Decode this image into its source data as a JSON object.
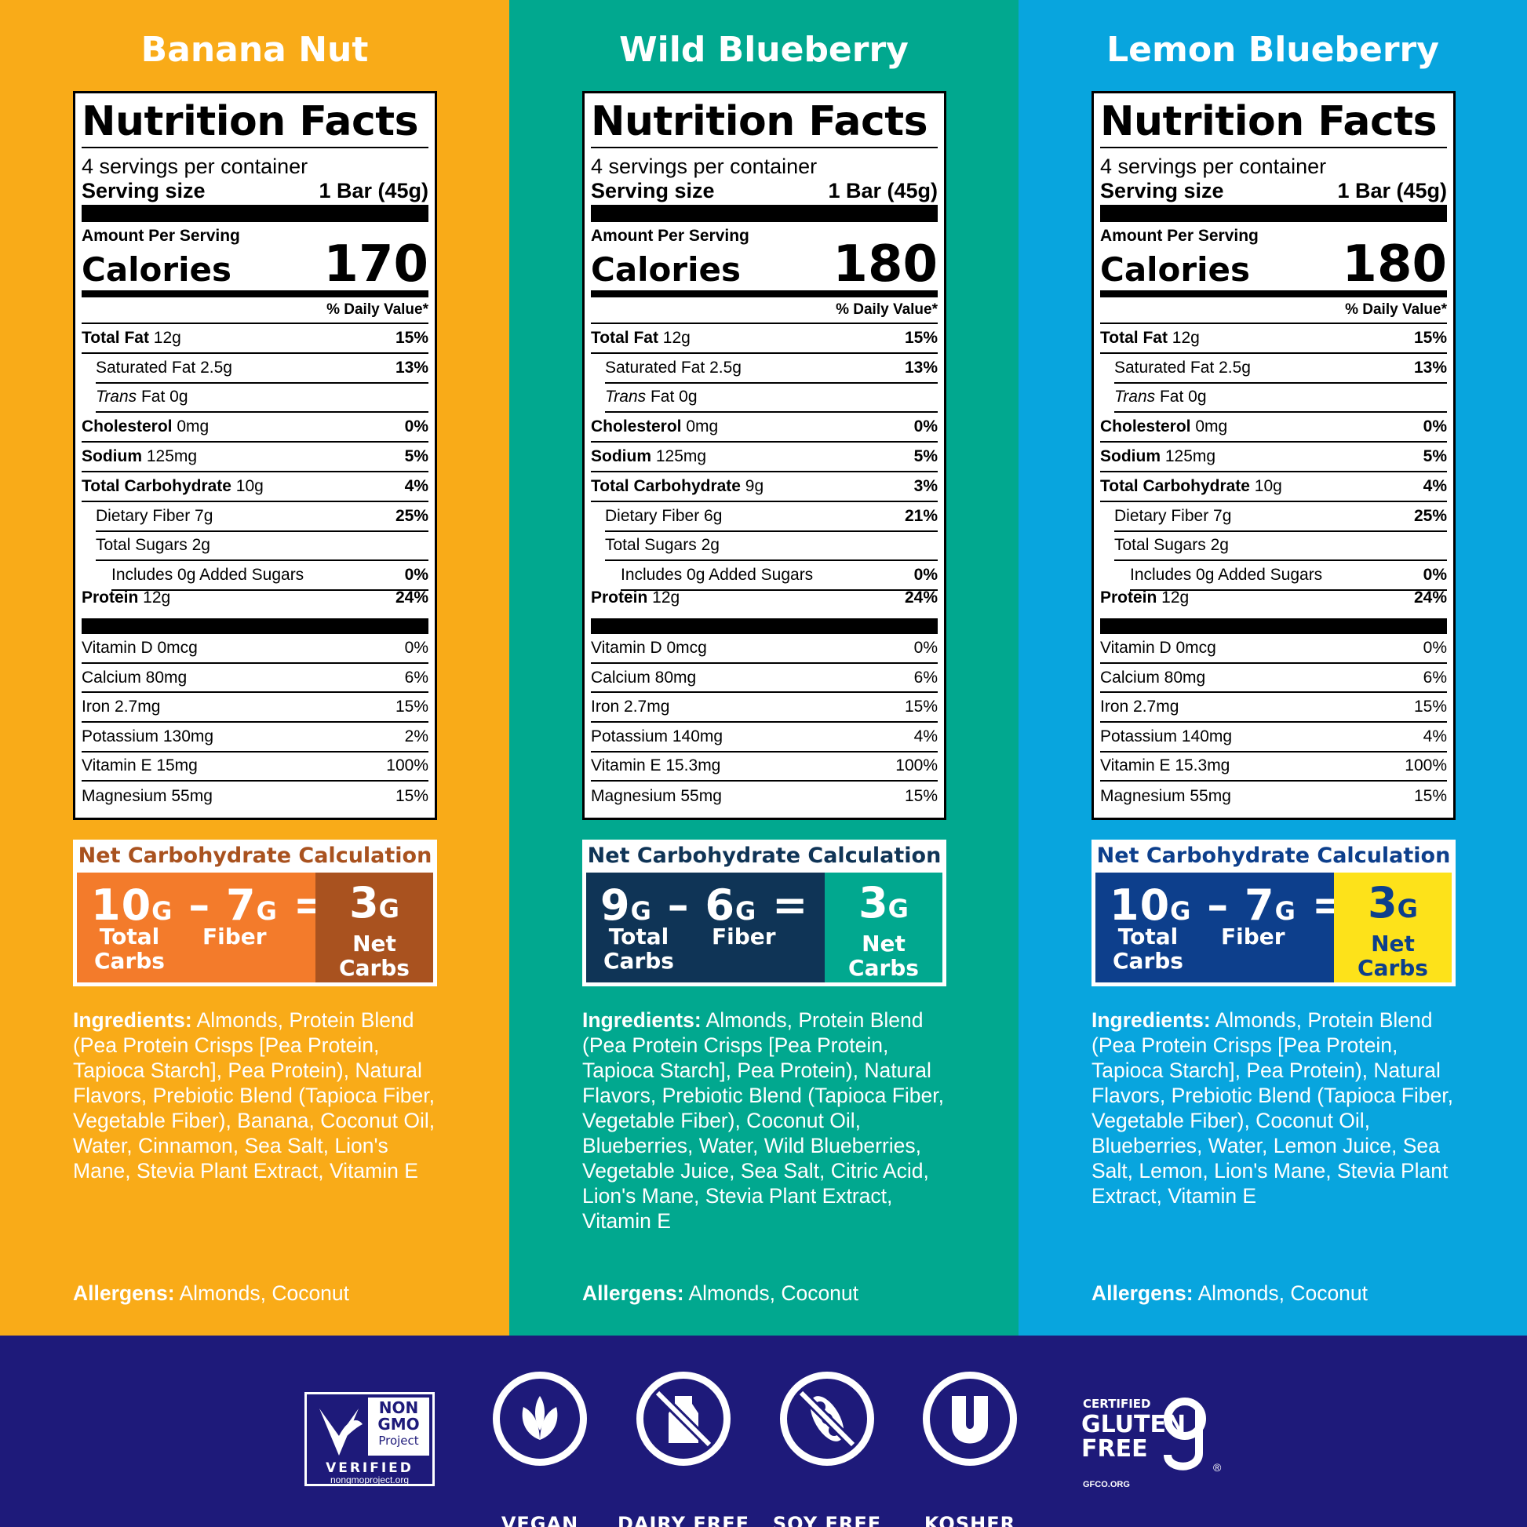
{
  "flavors": [
    {
      "name": "Banana Nut",
      "servings": "4 servings per container",
      "serving_size_label": "Serving size",
      "serving_size": "1 Bar (45g)",
      "amount_per": "Amount Per Serving",
      "calories_label": "Calories",
      "calories": "170",
      "dv_header": "% Daily Value*",
      "nutrients": [
        {
          "bold": "Total Fat",
          "amount": " 12g",
          "dv": "15%"
        },
        {
          "name": "Saturated Fat 2.5g",
          "dv": "13%"
        },
        {
          "italic": "Trans",
          "amount": " Fat 0g",
          "dv": ""
        },
        {
          "bold": "Cholesterol",
          "amount": " 0mg",
          "dv": "0%"
        },
        {
          "bold": "Sodium",
          "amount": " 125mg",
          "dv": "5%"
        },
        {
          "bold": "Total Carbohydrate",
          "amount": " 10g",
          "dv": "4%"
        },
        {
          "name": "Dietary Fiber 7g",
          "dv": "25%"
        },
        {
          "name": "Total Sugars 2g",
          "dv": ""
        },
        {
          "name": "Includes 0g Added Sugars",
          "dv": "0%"
        },
        {
          "bold": "Protein",
          "amount": " 12g",
          "dv": "24%"
        }
      ],
      "vitamins": [
        {
          "name": "Vitamin D 0mcg",
          "dv": "0%"
        },
        {
          "name": "Calcium 80mg",
          "dv": "6%"
        },
        {
          "name": "Iron 2.7mg",
          "dv": "15%"
        },
        {
          "name": "Potassium 130mg",
          "dv": "2%"
        },
        {
          "name": "Vitamin E 15mg",
          "dv": "100%"
        },
        {
          "name": "Magnesium 55mg",
          "dv": "15%"
        }
      ],
      "net_carb": {
        "title": "Net Carbohydrate Calculation",
        "total": "10",
        "fiber": "7",
        "net": "3",
        "unit": "G",
        "minus": "–",
        "equals": "=",
        "total_label_1": "Total",
        "total_label_2": "Carbs",
        "fiber_label": "Fiber",
        "net_label_1": "Net",
        "net_label_2": "Carbs"
      },
      "ingredients_label": "Ingredients:",
      "ingredients": " Almonds, Protein Blend (Pea Protein Crisps [Pea Protein, Tapioca Starch], Pea Protein), Natural Flavors, Prebiotic Blend (Tapioca Fiber, Vegetable Fiber), Banana, Coconut Oil, Water, Cinnamon, Sea Salt, Lion's Mane, Stevia Plant Extract, Vitamin E",
      "allergens_label": "Allergens:",
      "allergens": " Almonds, Coconut",
      "colors": {
        "title_color": "#a9521f",
        "left_bg": "#f37b2b",
        "right_bg": "#a9521f",
        "right_text": "#ffffff"
      }
    },
    {
      "name": "Wild Blueberry",
      "servings": "4 servings per container",
      "serving_size_label": "Serving size",
      "serving_size": "1 Bar (45g)",
      "amount_per": "Amount Per Serving",
      "calories_label": "Calories",
      "calories": "180",
      "dv_header": "% Daily Value*",
      "nutrients": [
        {
          "bold": "Total Fat",
          "amount": " 12g",
          "dv": "15%"
        },
        {
          "name": "Saturated Fat 2.5g",
          "dv": "13%"
        },
        {
          "italic": "Trans",
          "amount": " Fat 0g",
          "dv": ""
        },
        {
          "bold": "Cholesterol",
          "amount": " 0mg",
          "dv": "0%"
        },
        {
          "bold": "Sodium",
          "amount": " 125mg",
          "dv": "5%"
        },
        {
          "bold": "Total Carbohydrate",
          "amount": " 9g",
          "dv": "3%"
        },
        {
          "name": "Dietary Fiber 6g",
          "dv": "21%"
        },
        {
          "name": "Total Sugars 2g",
          "dv": ""
        },
        {
          "name": "Includes 0g Added Sugars",
          "dv": "0%"
        },
        {
          "bold": "Protein",
          "amount": " 12g",
          "dv": "24%"
        }
      ],
      "vitamins": [
        {
          "name": "Vitamin D 0mcg",
          "dv": "0%"
        },
        {
          "name": "Calcium 80mg",
          "dv": "6%"
        },
        {
          "name": "Iron 2.7mg",
          "dv": "15%"
        },
        {
          "name": "Potassium 140mg",
          "dv": "4%"
        },
        {
          "name": "Vitamin E 15.3mg",
          "dv": "100%"
        },
        {
          "name": "Magnesium 55mg",
          "dv": "15%"
        }
      ],
      "net_carb": {
        "title": "Net Carbohydrate Calculation",
        "total": "9",
        "fiber": "6",
        "net": "3",
        "unit": "G",
        "minus": "–",
        "equals": "=",
        "total_label_1": "Total",
        "total_label_2": "Carbs",
        "fiber_label": "Fiber",
        "net_label_1": "Net",
        "net_label_2": "Carbs"
      },
      "ingredients_label": "Ingredients:",
      "ingredients": " Almonds, Protein Blend (Pea Protein Crisps [Pea Protein, Tapioca Starch], Pea Protein), Natural Flavors, Prebiotic Blend (Tapioca Fiber, Vegetable Fiber), Coconut Oil, Blueberries, Water, Wild Blueberries, Vegetable Juice, Sea Salt, Citric Acid, Lion's Mane, Stevia Plant Extract, Vitamin E",
      "allergens_label": "Allergens:",
      "allergens": " Almonds, Coconut",
      "colors": {
        "title_color": "#0f3456",
        "left_bg": "#0f3456",
        "right_bg": "#01a88f",
        "right_text": "#ffffff"
      }
    },
    {
      "name": "Lemon Blueberry",
      "servings": "4 servings per container",
      "serving_size_label": "Serving size",
      "serving_size": "1 Bar (45g)",
      "amount_per": "Amount Per Serving",
      "calories_label": "Calories",
      "calories": "180",
      "dv_header": "% Daily Value*",
      "nutrients": [
        {
          "bold": "Total Fat",
          "amount": " 12g",
          "dv": "15%"
        },
        {
          "name": "Saturated Fat 2.5g",
          "dv": "13%"
        },
        {
          "italic": "Trans",
          "amount": " Fat 0g",
          "dv": ""
        },
        {
          "bold": "Cholesterol",
          "amount": " 0mg",
          "dv": "0%"
        },
        {
          "bold": "Sodium",
          "amount": " 125mg",
          "dv": "5%"
        },
        {
          "bold": "Total Carbohydrate",
          "amount": " 10g",
          "dv": "4%"
        },
        {
          "name": "Dietary Fiber 7g",
          "dv": "25%"
        },
        {
          "name": "Total Sugars 2g",
          "dv": ""
        },
        {
          "name": "Includes 0g Added Sugars",
          "dv": "0%"
        },
        {
          "bold": "Protein",
          "amount": " 12g",
          "dv": "24%"
        }
      ],
      "vitamins": [
        {
          "name": "Vitamin D 0mcg",
          "dv": "0%"
        },
        {
          "name": "Calcium 80mg",
          "dv": "6%"
        },
        {
          "name": "Iron 2.7mg",
          "dv": "15%"
        },
        {
          "name": "Potassium 140mg",
          "dv": "4%"
        },
        {
          "name": "Vitamin E 15.3mg",
          "dv": "100%"
        },
        {
          "name": "Magnesium 55mg",
          "dv": "15%"
        }
      ],
      "net_carb": {
        "title": "Net Carbohydrate Calculation",
        "total": "10",
        "fiber": "7",
        "net": "3",
        "unit": "G",
        "minus": "–",
        "equals": "=",
        "total_label_1": "Total",
        "total_label_2": "Carbs",
        "fiber_label": "Fiber",
        "net_label_1": "Net",
        "net_label_2": "Carbs"
      },
      "ingredients_label": "Ingredients:",
      "ingredients": " Almonds, Protein Blend (Pea Protein Crisps [Pea Protein, Tapioca Starch], Pea Protein), Natural Flavors, Prebiotic Blend (Tapioca Fiber, Vegetable Fiber), Coconut Oil, Blueberries, Water, Lemon Juice, Sea Salt, Lemon, Lion's Mane, Stevia Plant Extract, Vitamin E",
      "allergens_label": "Allergens:",
      "allergens": " Almonds, Coconut",
      "colors": {
        "title_color": "#0d3f8c",
        "left_bg": "#0d3f8c",
        "right_bg": "#fde21a",
        "right_text": "#0d3f8c"
      }
    }
  ],
  "footer": {
    "non_gmo": {
      "line1": "NON",
      "line2": "GMO",
      "line3": "Project",
      "verified": "VERIFIED",
      "url": "nongmoproject.org"
    },
    "badges": [
      {
        "label": "VEGAN",
        "icon": "vegan-leaf-icon"
      },
      {
        "label": "DAIRY FREE",
        "icon": "dairy-free-bottle-icon"
      },
      {
        "label": "SOY FREE",
        "icon": "soy-free-bean-icon"
      },
      {
        "label": "KOSHER",
        "icon": "kosher-u-icon"
      }
    ],
    "gluten_free": {
      "certified": "CERTIFIED",
      "line1": "GLUTEN",
      "line2": "FREE",
      "url": "GFCO.ORG",
      "reg": "®"
    }
  }
}
